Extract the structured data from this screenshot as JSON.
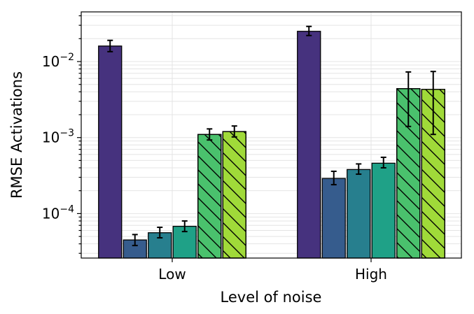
{
  "chart_data": {
    "type": "bar",
    "xlabel": "Level of noise",
    "ylabel": "RMSE Activations",
    "yscale": "log",
    "ylim": [
      2.6e-05,
      0.045
    ],
    "grid": true,
    "categories": [
      "Low",
      "High"
    ],
    "ytick_labels": [
      {
        "value": 0.0001,
        "base": "10",
        "exp": "−4"
      },
      {
        "value": 0.001,
        "base": "10",
        "exp": "−3"
      },
      {
        "value": 0.01,
        "base": "10",
        "exp": "−2"
      }
    ],
    "series": [
      {
        "color": "#46327e",
        "hatch": false,
        "values": [
          0.016,
          0.025
        ],
        "err_low": [
          0.0135,
          0.022
        ],
        "err_high": [
          0.019,
          0.029
        ]
      },
      {
        "color": "#365c8d",
        "hatch": false,
        "values": [
          4.5e-05,
          0.00029
        ],
        "err_low": [
          3.8e-05,
          0.00024
        ],
        "err_high": [
          5.3e-05,
          0.00036
        ]
      },
      {
        "color": "#277f8e",
        "hatch": false,
        "values": [
          5.6e-05,
          0.00038
        ],
        "err_low": [
          4.8e-05,
          0.00033
        ],
        "err_high": [
          6.6e-05,
          0.00045
        ]
      },
      {
        "color": "#1fa187",
        "hatch": false,
        "values": [
          6.8e-05,
          0.00046
        ],
        "err_low": [
          5.8e-05,
          0.0004
        ],
        "err_high": [
          8e-05,
          0.00055
        ]
      },
      {
        "color": "#4ac16d",
        "hatch": true,
        "values": [
          0.0011,
          0.0044
        ],
        "err_low": [
          0.00093,
          0.0014
        ],
        "err_high": [
          0.0013,
          0.0073
        ]
      },
      {
        "color": "#a0da39",
        "hatch": true,
        "values": [
          0.0012,
          0.0043
        ],
        "err_low": [
          0.00102,
          0.0011
        ],
        "err_high": [
          0.00142,
          0.0074
        ]
      }
    ]
  }
}
